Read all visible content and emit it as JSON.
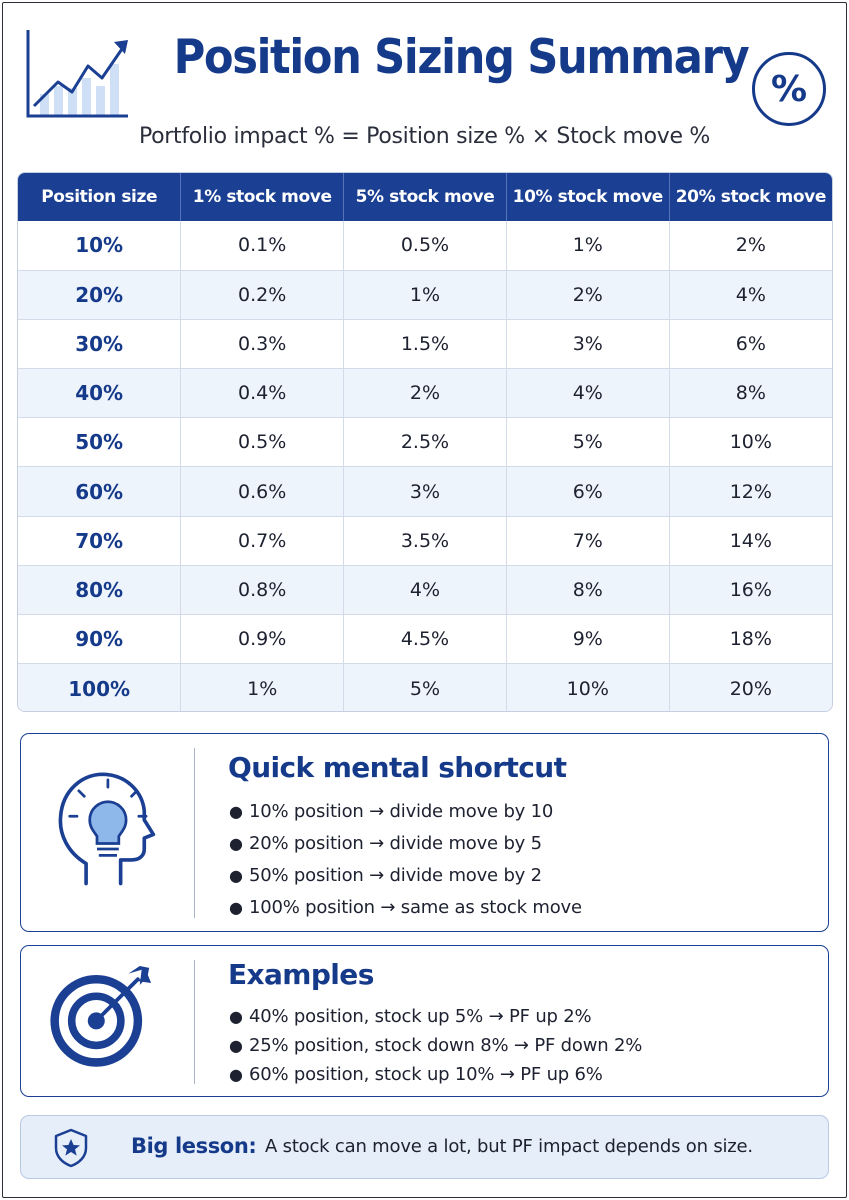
{
  "header": {
    "title": "Position Sizing Summary",
    "badge": "%",
    "subtitle": "Portfolio impact % = Position size % × Stock move %"
  },
  "table": {
    "columns": [
      "Position size",
      "1% stock move",
      "5% stock move",
      "10% stock move",
      "20% stock move"
    ],
    "rows": [
      [
        "10%",
        "0.1%",
        "0.5%",
        "1%",
        "2%"
      ],
      [
        "20%",
        "0.2%",
        "1%",
        "2%",
        "4%"
      ],
      [
        "30%",
        "0.3%",
        "1.5%",
        "3%",
        "6%"
      ],
      [
        "40%",
        "0.4%",
        "2%",
        "4%",
        "8%"
      ],
      [
        "50%",
        "0.5%",
        "2.5%",
        "5%",
        "10%"
      ],
      [
        "60%",
        "0.6%",
        "3%",
        "6%",
        "12%"
      ],
      [
        "70%",
        "0.7%",
        "3.5%",
        "7%",
        "14%"
      ],
      [
        "80%",
        "0.8%",
        "4%",
        "8%",
        "16%"
      ],
      [
        "90%",
        "0.9%",
        "4.5%",
        "9%",
        "18%"
      ],
      [
        "100%",
        "1%",
        "5%",
        "10%",
        "20%"
      ]
    ]
  },
  "shortcut": {
    "icon": "head-lightbulb-icon",
    "title": "Quick mental shortcut",
    "items": [
      "10% position → divide move by 10",
      "20% position → divide move by 5",
      "50% position → divide move by 2",
      "100% position → same as stock move"
    ]
  },
  "examples": {
    "icon": "target-arrow-icon",
    "title": "Examples",
    "items": [
      "40% position, stock up 5% → PF up 2%",
      "25% position, stock down 8% → PF down 2%",
      "60% position, stock up 10% → PF up 6%"
    ]
  },
  "lesson": {
    "icon": "shield-star-icon",
    "label": "Big lesson:",
    "text": "A stock can move a lot, but PF impact depends on size."
  },
  "colors": {
    "primary": "#163a8a",
    "header_bg": "#1b3f93",
    "stripe": "#eef4fc",
    "lesson_bg": "#e6eef9"
  }
}
